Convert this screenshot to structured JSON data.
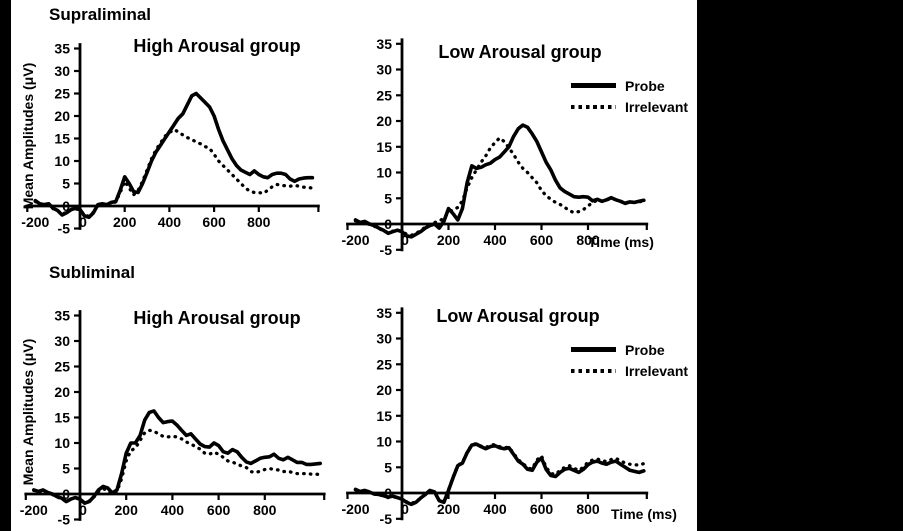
{
  "page": {
    "bg": "#ffffff",
    "ink": "#000000",
    "border_bar_color": "#000000"
  },
  "sections": [
    {
      "label": "Supraliminal"
    },
    {
      "label": "Subliminal"
    }
  ],
  "chart_data": [
    {
      "id": "supraliminal-high",
      "type": "line",
      "section": "Supraliminal",
      "title": "High Arousal group",
      "y_label": "Mean Amplitudes (μV)",
      "ylim": [
        -5,
        35
      ],
      "y_ticks": [
        35,
        30,
        25,
        20,
        15,
        10,
        5,
        0,
        -5
      ],
      "x_ticks": [
        -200,
        0,
        200,
        400,
        600,
        800
      ],
      "x_start": -200,
      "x_step": 20,
      "x_end": 1040,
      "show_legend": false,
      "show_y_label": true,
      "show_x_label": false,
      "legend_position": "none",
      "series": [
        {
          "name": "Probe",
          "style": "solid",
          "values": [
            1.2,
            0.5,
            0.3,
            0.5,
            -0.5,
            -1,
            -2,
            -1.5,
            -0.8,
            -0.5,
            -0.8,
            -2.2,
            -2.5,
            -1.5,
            0.3,
            0.5,
            0.3,
            0.8,
            1,
            3.5,
            6.5,
            5,
            3.2,
            3,
            5,
            7.5,
            10,
            12,
            13.5,
            15,
            16.5,
            18,
            19.5,
            20.5,
            22.5,
            24.5,
            25,
            24,
            23,
            22,
            20,
            17,
            14.5,
            12.5,
            10.5,
            9,
            8,
            7.5,
            7,
            7.8,
            7,
            6.5,
            6.3,
            7,
            7.3,
            7.3,
            7,
            6,
            5.5,
            6,
            6.2,
            6.3,
            6.3
          ]
        },
        {
          "name": "Irrelevant",
          "style": "dotted",
          "values": [
            1,
            0.4,
            0.2,
            0.4,
            -0.6,
            -1,
            -1.8,
            -1.4,
            -0.8,
            -0.6,
            -0.9,
            -2,
            -2.3,
            -1.4,
            0.2,
            0.4,
            0.2,
            0.6,
            0.9,
            3,
            5.5,
            4,
            2.5,
            3.5,
            5.5,
            8,
            10.5,
            12.5,
            14,
            15.5,
            16.3,
            17,
            16.5,
            15.8,
            15.2,
            14.8,
            14.2,
            13.8,
            13.2,
            12.8,
            11.5,
            10,
            9,
            8,
            7,
            6,
            5,
            4,
            3.3,
            3,
            3,
            2.8,
            3.5,
            4.3,
            4.8,
            4.6,
            4.5,
            4.4,
            4.6,
            4.4,
            4.2,
            4.1,
            4
          ]
        }
      ]
    },
    {
      "id": "supraliminal-low",
      "type": "line",
      "section": "Supraliminal",
      "title": "Low Arousal group",
      "x_label": "Time (ms)",
      "ylim": [
        -5,
        35
      ],
      "y_ticks": [
        35,
        30,
        25,
        20,
        15,
        10,
        5,
        0,
        -5
      ],
      "x_ticks": [
        -200,
        0,
        200,
        400,
        600,
        800
      ],
      "x_start": -200,
      "x_step": 20,
      "x_end": 1040,
      "show_legend": true,
      "show_y_label": false,
      "show_x_label": true,
      "legend_position": "top-right",
      "series": [
        {
          "name": "Probe",
          "style": "solid",
          "values": [
            0.8,
            0.3,
            0.5,
            0,
            -0.3,
            -0.8,
            -1.2,
            -1.8,
            -1.5,
            -1.2,
            -1.5,
            -2.3,
            -2.5,
            -2,
            -1.5,
            -0.8,
            -0.3,
            0,
            -0.8,
            0.5,
            3,
            2,
            0.8,
            3,
            8,
            11.3,
            10.8,
            11,
            11.5,
            11.8,
            12.5,
            13,
            14,
            15,
            17,
            18.5,
            19.2,
            18.8,
            17.5,
            16,
            14,
            12,
            10.5,
            8.5,
            7,
            6.3,
            5.8,
            5.3,
            5.2,
            5.3,
            5.2,
            4.5,
            4.8,
            4.4,
            4.7,
            5.1,
            4.7,
            4.4,
            4,
            4.3,
            4.2,
            4.4,
            4.6
          ]
        },
        {
          "name": "Irrelevant",
          "style": "dotted",
          "values": [
            0.6,
            0.2,
            0.3,
            -0.1,
            -0.4,
            -0.9,
            -1.3,
            -1.7,
            -1.4,
            -1.3,
            -1.4,
            -2,
            -2.2,
            -1.8,
            -1.3,
            -0.6,
            0,
            0.3,
            0.5,
            1.2,
            2.2,
            2.8,
            3.2,
            4.5,
            7,
            9,
            10.5,
            12,
            13.2,
            14.8,
            15.8,
            16.7,
            16,
            14.8,
            13.5,
            12,
            10.8,
            10,
            9,
            8,
            6.5,
            5.5,
            4.8,
            4.2,
            3.8,
            3.2,
            2.6,
            2.2,
            2.4,
            2.8,
            3.5,
            4.2,
            4.6,
            4.4,
            4.7,
            5,
            4.7,
            4.4,
            4.1,
            4.3,
            4.2,
            4.3,
            4.5
          ]
        }
      ]
    },
    {
      "id": "subliminal-high",
      "type": "line",
      "section": "Subliminal",
      "title": "High Arousal group",
      "y_label": "Mean Amplitudes (μV)",
      "ylim": [
        -5,
        35
      ],
      "y_ticks": [
        35,
        30,
        25,
        20,
        15,
        10,
        5,
        0,
        -5
      ],
      "x_ticks": [
        -200,
        0,
        200,
        400,
        600,
        800
      ],
      "x_start": -200,
      "x_step": 20,
      "x_end": 1040,
      "show_legend": false,
      "show_y_label": true,
      "show_x_label": false,
      "legend_position": "none",
      "series": [
        {
          "name": "Probe",
          "style": "solid",
          "values": [
            0.8,
            0.5,
            0.8,
            0.3,
            0,
            -0.5,
            -0.8,
            -1.5,
            -1,
            -0.7,
            -1,
            -1.8,
            -1.5,
            -0.5,
            0.8,
            1.5,
            1.2,
            0.2,
            0.8,
            4,
            8,
            10,
            10,
            11.5,
            14.5,
            16,
            16.3,
            15,
            14,
            14.2,
            14.3,
            13.5,
            12.5,
            11.5,
            11.8,
            10.8,
            9.8,
            9.3,
            9.2,
            10,
            9.5,
            8.3,
            8,
            8.7,
            8.3,
            7.2,
            6.3,
            6,
            6.5,
            7,
            7.2,
            7.3,
            7.8,
            7,
            6.7,
            7.2,
            6.7,
            6.2,
            6.2,
            5.8,
            5.8,
            5.9,
            6
          ]
        },
        {
          "name": "Irrelevant",
          "style": "dotted",
          "values": [
            0.7,
            0.4,
            0.7,
            0.2,
            -0.1,
            -0.6,
            -0.9,
            -1.4,
            -1,
            -0.8,
            -1,
            -1.7,
            -1.4,
            -0.6,
            0.5,
            1,
            0.8,
            0,
            0.5,
            3,
            6.5,
            8.5,
            9,
            10.5,
            12,
            12.5,
            12.3,
            11.8,
            11.3,
            11.2,
            11.3,
            11.2,
            10.8,
            10.2,
            9.8,
            9.3,
            8.8,
            8,
            7.8,
            8.2,
            7.8,
            7.2,
            6.5,
            6.3,
            5.8,
            5.5,
            5.2,
            4.4,
            4.2,
            4.5,
            4.8,
            5,
            4.8,
            4.7,
            4.4,
            4.5,
            4.2,
            4,
            4,
            4,
            3.9,
            3.9,
            3.8
          ]
        }
      ]
    },
    {
      "id": "subliminal-low",
      "type": "line",
      "section": "Subliminal",
      "title": "Low Arousal group",
      "x_label": "Time (ms)",
      "ylim": [
        -5,
        35
      ],
      "y_ticks": [
        35,
        30,
        25,
        20,
        15,
        10,
        5,
        0,
        -5
      ],
      "x_ticks": [
        -200,
        0,
        200,
        400,
        600,
        800
      ],
      "x_start": -200,
      "x_step": 20,
      "x_end": 1040,
      "show_legend": true,
      "show_y_label": false,
      "show_x_label": true,
      "legend_position": "top-right",
      "series": [
        {
          "name": "Probe",
          "style": "solid",
          "values": [
            0.7,
            0.3,
            0.5,
            0.2,
            -0.2,
            -0.3,
            -0.5,
            -0.8,
            -0.6,
            -0.9,
            -1.2,
            -1.8,
            -2.2,
            -1.8,
            -1,
            -0.3,
            0.5,
            0.2,
            -1.5,
            -1.8,
            0.5,
            3,
            5.3,
            5.8,
            7.8,
            9.3,
            9.5,
            9,
            8.6,
            9,
            9.2,
            8.8,
            8.6,
            8.8,
            7.5,
            6.2,
            5.6,
            4.6,
            4.4,
            6,
            6.8,
            4.6,
            3.4,
            3.2,
            4,
            4.6,
            4.8,
            4.4,
            4,
            4.6,
            5.5,
            6,
            6.2,
            5.8,
            5.6,
            6,
            6.2,
            5.6,
            5,
            4.4,
            4.2,
            4,
            4.3
          ]
        },
        {
          "name": "Irrelevant",
          "style": "dotted",
          "values": [
            0.6,
            0.3,
            0.4,
            0.1,
            -0.2,
            -0.4,
            -0.5,
            -0.9,
            -0.7,
            -0.9,
            -1.1,
            -1.7,
            -2,
            -1.7,
            -1,
            -0.3,
            0.4,
            0.2,
            -1.4,
            -1.6,
            0.6,
            3.1,
            5.4,
            5.9,
            7.9,
            9.4,
            9.6,
            9.1,
            8.8,
            9.3,
            9.4,
            9,
            8.8,
            8.9,
            7.7,
            6.4,
            5.8,
            4.8,
            4.7,
            6.4,
            7.2,
            5,
            3.8,
            3.6,
            4.4,
            5,
            5.3,
            4.8,
            4.4,
            5,
            6,
            6.4,
            6.6,
            6.3,
            6.1,
            6.5,
            6.7,
            6.3,
            5.8,
            5.6,
            5.5,
            5.4,
            5.7
          ]
        }
      ]
    }
  ]
}
